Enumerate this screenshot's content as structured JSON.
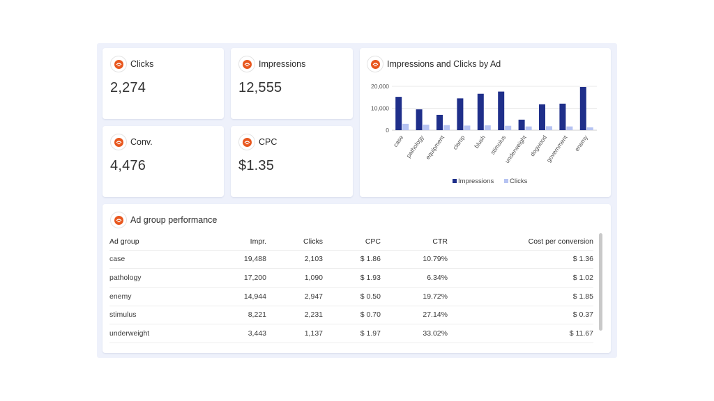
{
  "kpis": [
    {
      "label": "Clicks",
      "value": "2,274"
    },
    {
      "label": "Impressions",
      "value": "12,555"
    },
    {
      "label": "Conv.",
      "value": "4,476"
    },
    {
      "label": "CPC",
      "value": "$1.35"
    }
  ],
  "chart": {
    "title": "Impressions and Clicks by Ad",
    "y_ticks": [
      "20,000",
      "10,000",
      "0"
    ],
    "legend": [
      "Impressions",
      "Clicks"
    ]
  },
  "chart_data": {
    "type": "bar",
    "title": "Impressions and Clicks by Ad",
    "categories": [
      "case",
      "pathology",
      "equipment",
      "clamp",
      "blush",
      "stimulus",
      "underweight",
      "dogwood",
      "government",
      "enemy"
    ],
    "series": [
      {
        "name": "Impressions",
        "values": [
          15200,
          9500,
          7000,
          14500,
          16600,
          17600,
          4800,
          11800,
          12100,
          19700
        ]
      },
      {
        "name": "Clicks",
        "values": [
          2900,
          2500,
          2300,
          2100,
          2200,
          2000,
          1700,
          1800,
          1700,
          1300
        ]
      }
    ],
    "ylim": [
      0,
      20000
    ],
    "grid": true,
    "legend_position": "bottom",
    "colors": [
      "#1f2f8a",
      "#b6c3f2"
    ]
  },
  "table": {
    "title": "Ad group performance",
    "headers": [
      "Ad group",
      "Impr.",
      "Clicks",
      "CPC",
      "CTR",
      "Cost per conversion"
    ],
    "rows": [
      [
        "case",
        "19,488",
        "2,103",
        "$ 1.86",
        "10.79%",
        "$ 1.36"
      ],
      [
        "pathology",
        "17,200",
        "1,090",
        "$ 1.93",
        "6.34%",
        "$ 1.02"
      ],
      [
        "enemy",
        "14,944",
        "2,947",
        "$ 0.50",
        "19.72%",
        "$ 1.85"
      ],
      [
        "stimulus",
        "8,221",
        "2,231",
        "$ 0.70",
        "27.14%",
        "$ 0.37"
      ],
      [
        "underweight",
        "3,443",
        "1,137",
        "$ 1.97",
        "33.02%",
        "$ 11.67"
      ]
    ]
  },
  "colors": {
    "brand": "#e8571e",
    "background": "#eef1fb"
  }
}
